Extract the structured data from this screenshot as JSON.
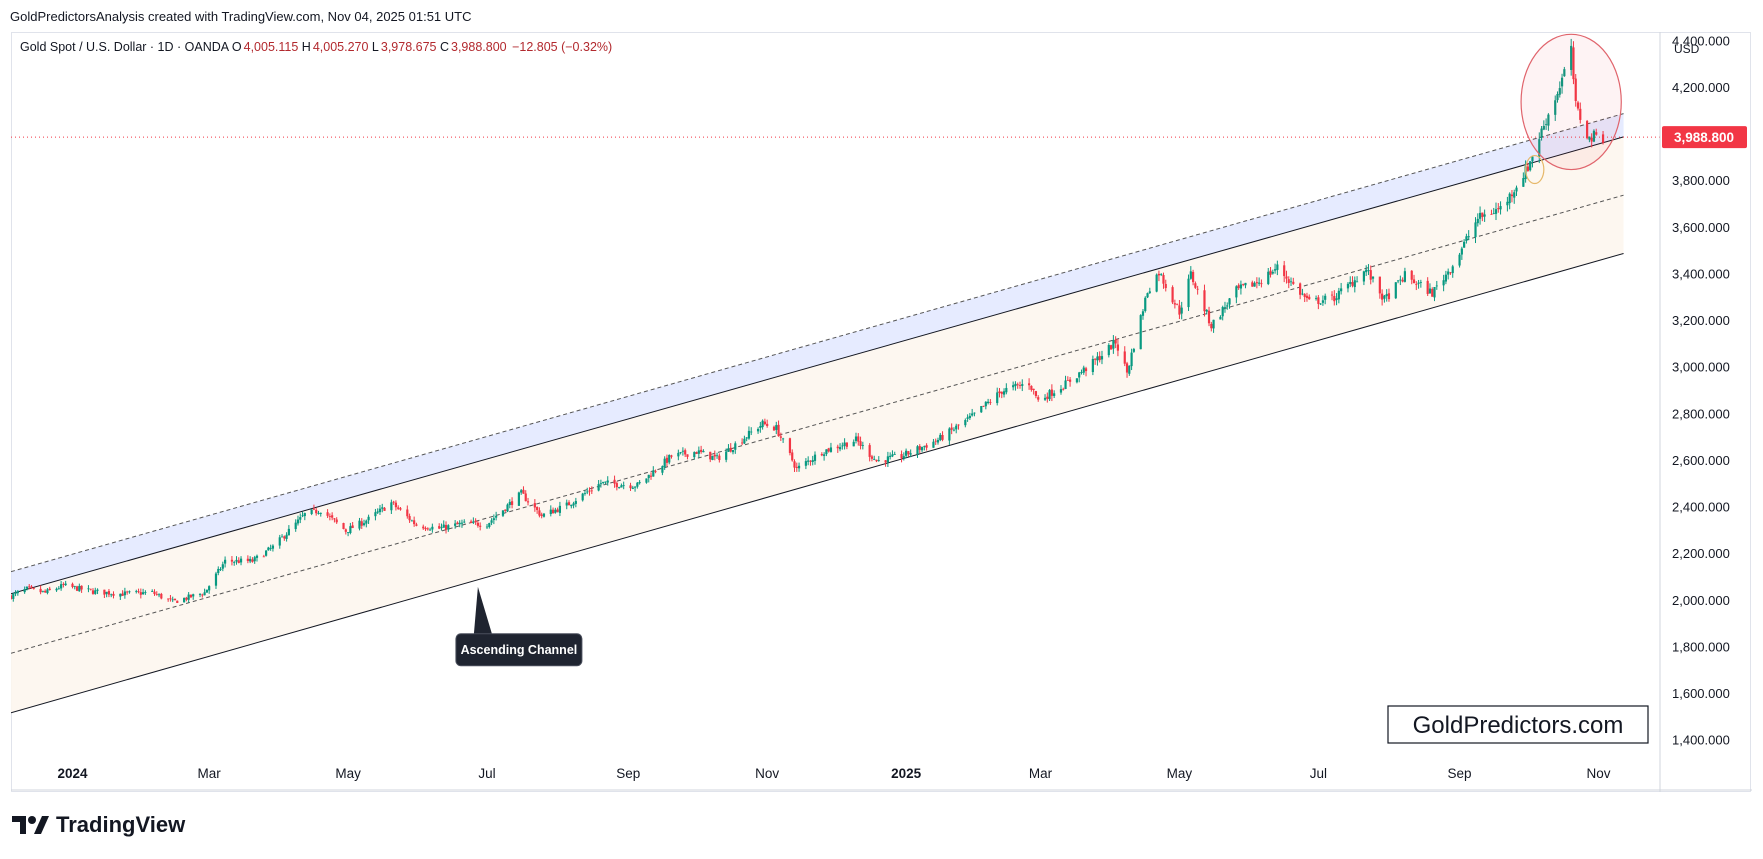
{
  "header": {
    "caption": "GoldPredictorsAnalysis created with TradingView.com, Nov 04, 2025 01:51 UTC"
  },
  "legend": {
    "symbol": "Gold Spot / U.S. Dollar · 1D · OANDA",
    "open_label": "O",
    "open": "4,005.115",
    "high_label": "H",
    "high": "4,005.270",
    "low_label": "L",
    "low": "3,978.675",
    "close_label": "C",
    "close": "3,988.800",
    "change": "−12.805 (−0.32%)"
  },
  "footer": {
    "brand": "TradingView"
  },
  "colors": {
    "up": "#089981",
    "down": "#f23645",
    "price_tag": "#f23645",
    "channel_fill": "#fdf6ee",
    "upper_band_fill": "#dbe3ff",
    "circle": "#e0646c",
    "small_circle": "#e6b86a"
  },
  "chart_data": {
    "type": "candlestick",
    "currency": "USD",
    "y_ticks": [
      "4,400.000",
      "4,200.000",
      "3,800.000",
      "3,600.000",
      "3,400.000",
      "3,200.000",
      "3,000.000",
      "2,800.000",
      "2,600.000",
      "2,400.000",
      "2,200.000",
      "2,000.000",
      "1,800.000",
      "1,600.000",
      "1,400.000"
    ],
    "y_tick_values": [
      4400,
      4200,
      3800,
      3600,
      3400,
      3200,
      3000,
      2800,
      2600,
      2400,
      2200,
      2000,
      1800,
      1600,
      1400
    ],
    "ylim": [
      1330,
      4440
    ],
    "x_domain": [
      "2023-12-05",
      "2025-11-28"
    ],
    "x_ticks": [
      {
        "label": "2024",
        "date": "2024-01-01",
        "bold": true
      },
      {
        "label": "Mar",
        "date": "2024-03-01"
      },
      {
        "label": "May",
        "date": "2024-05-01"
      },
      {
        "label": "Jul",
        "date": "2024-07-01"
      },
      {
        "label": "Sep",
        "date": "2024-09-01"
      },
      {
        "label": "Nov",
        "date": "2024-11-01"
      },
      {
        "label": "2025",
        "date": "2025-01-01",
        "bold": true
      },
      {
        "label": "Mar",
        "date": "2025-03-01"
      },
      {
        "label": "May",
        "date": "2025-05-01"
      },
      {
        "label": "Jul",
        "date": "2025-07-01"
      },
      {
        "label": "Sep",
        "date": "2025-09-01"
      },
      {
        "label": "Nov",
        "date": "2025-11-01"
      }
    ],
    "last_price": 3988.8,
    "last_price_label": "3,988.800",
    "price_path": [
      [
        "2023-12-05",
        2020
      ],
      [
        "2023-12-12",
        2050
      ],
      [
        "2023-12-20",
        2035
      ],
      [
        "2023-12-28",
        2065
      ],
      [
        "2024-01-10",
        2040
      ],
      [
        "2024-01-22",
        2030
      ],
      [
        "2024-02-05",
        2035
      ],
      [
        "2024-02-14",
        1995
      ],
      [
        "2024-02-28",
        2035
      ],
      [
        "2024-03-08",
        2170
      ],
      [
        "2024-03-20",
        2170
      ],
      [
        "2024-03-29",
        2230
      ],
      [
        "2024-04-12",
        2370
      ],
      [
        "2024-04-19",
        2390
      ],
      [
        "2024-04-30",
        2300
      ],
      [
        "2024-05-10",
        2350
      ],
      [
        "2024-05-20",
        2420
      ],
      [
        "2024-05-31",
        2325
      ],
      [
        "2024-06-10",
        2310
      ],
      [
        "2024-06-20",
        2330
      ],
      [
        "2024-07-01",
        2330
      ],
      [
        "2024-07-16",
        2460
      ],
      [
        "2024-07-25",
        2365
      ],
      [
        "2024-08-05",
        2410
      ],
      [
        "2024-08-20",
        2505
      ],
      [
        "2024-09-05",
        2495
      ],
      [
        "2024-09-20",
        2620
      ],
      [
        "2024-10-01",
        2640
      ],
      [
        "2024-10-10",
        2610
      ],
      [
        "2024-10-30",
        2760
      ],
      [
        "2024-11-05",
        2740
      ],
      [
        "2024-11-14",
        2565
      ],
      [
        "2024-11-25",
        2640
      ],
      [
        "2024-12-10",
        2690
      ],
      [
        "2024-12-19",
        2600
      ],
      [
        "2024-12-30",
        2620
      ],
      [
        "2025-01-15",
        2690
      ],
      [
        "2025-01-30",
        2790
      ],
      [
        "2025-02-12",
        2900
      ],
      [
        "2025-02-24",
        2935
      ],
      [
        "2025-02-28",
        2860
      ],
      [
        "2025-03-12",
        2930
      ],
      [
        "2025-03-24",
        3020
      ],
      [
        "2025-04-03",
        3110
      ],
      [
        "2025-04-08",
        2980
      ],
      [
        "2025-04-17",
        3330
      ],
      [
        "2025-04-22",
        3410
      ],
      [
        "2025-05-01",
        3240
      ],
      [
        "2025-05-06",
        3400
      ],
      [
        "2025-05-15",
        3180
      ],
      [
        "2025-05-26",
        3330
      ],
      [
        "2025-06-05",
        3370
      ],
      [
        "2025-06-13",
        3430
      ],
      [
        "2025-06-27",
        3280
      ],
      [
        "2025-07-08",
        3300
      ],
      [
        "2025-07-22",
        3420
      ],
      [
        "2025-07-30",
        3290
      ],
      [
        "2025-08-08",
        3395
      ],
      [
        "2025-08-20",
        3320
      ],
      [
        "2025-08-29",
        3440
      ],
      [
        "2025-09-09",
        3640
      ],
      [
        "2025-09-20",
        3690
      ],
      [
        "2025-10-01",
        3860
      ],
      [
        "2025-10-08",
        4040
      ],
      [
        "2025-10-14",
        4180
      ],
      [
        "2025-10-20",
        4360
      ],
      [
        "2025-10-22",
        4120
      ],
      [
        "2025-10-28",
        3980
      ],
      [
        "2025-10-31",
        4000
      ],
      [
        "2025-11-03",
        3988
      ]
    ],
    "channel": {
      "upper": {
        "start": [
          "2023-12-05",
          2030
        ],
        "end": [
          "2025-11-12",
          3990
        ]
      },
      "lower": {
        "start": [
          "2023-12-05",
          1520
        ],
        "end": [
          "2025-11-12",
          3490
        ]
      },
      "middle_dashed": {
        "start": [
          "2023-12-05",
          1775
        ],
        "end": [
          "2025-11-12",
          3740
        ]
      },
      "upper_dashed": {
        "start": [
          "2023-12-05",
          2125
        ],
        "end": [
          "2025-11-12",
          4090
        ]
      }
    },
    "annotations": [
      {
        "text": "Ascending Channel",
        "pointer_date": "2024-06-27",
        "pointer_value": 2060,
        "label_date": "2024-07-15",
        "label_value": 1790
      }
    ],
    "highlight_circles": [
      {
        "center_date": "2025-10-20",
        "center_value": 4140,
        "rx_days": 22,
        "ry_value": 290,
        "color": "circle"
      },
      {
        "center_date": "2025-10-04",
        "center_value": 3850,
        "rx_days": 4,
        "ry_value": 60,
        "color": "small_circle"
      }
    ],
    "watermark": "GoldPredictors.com"
  }
}
